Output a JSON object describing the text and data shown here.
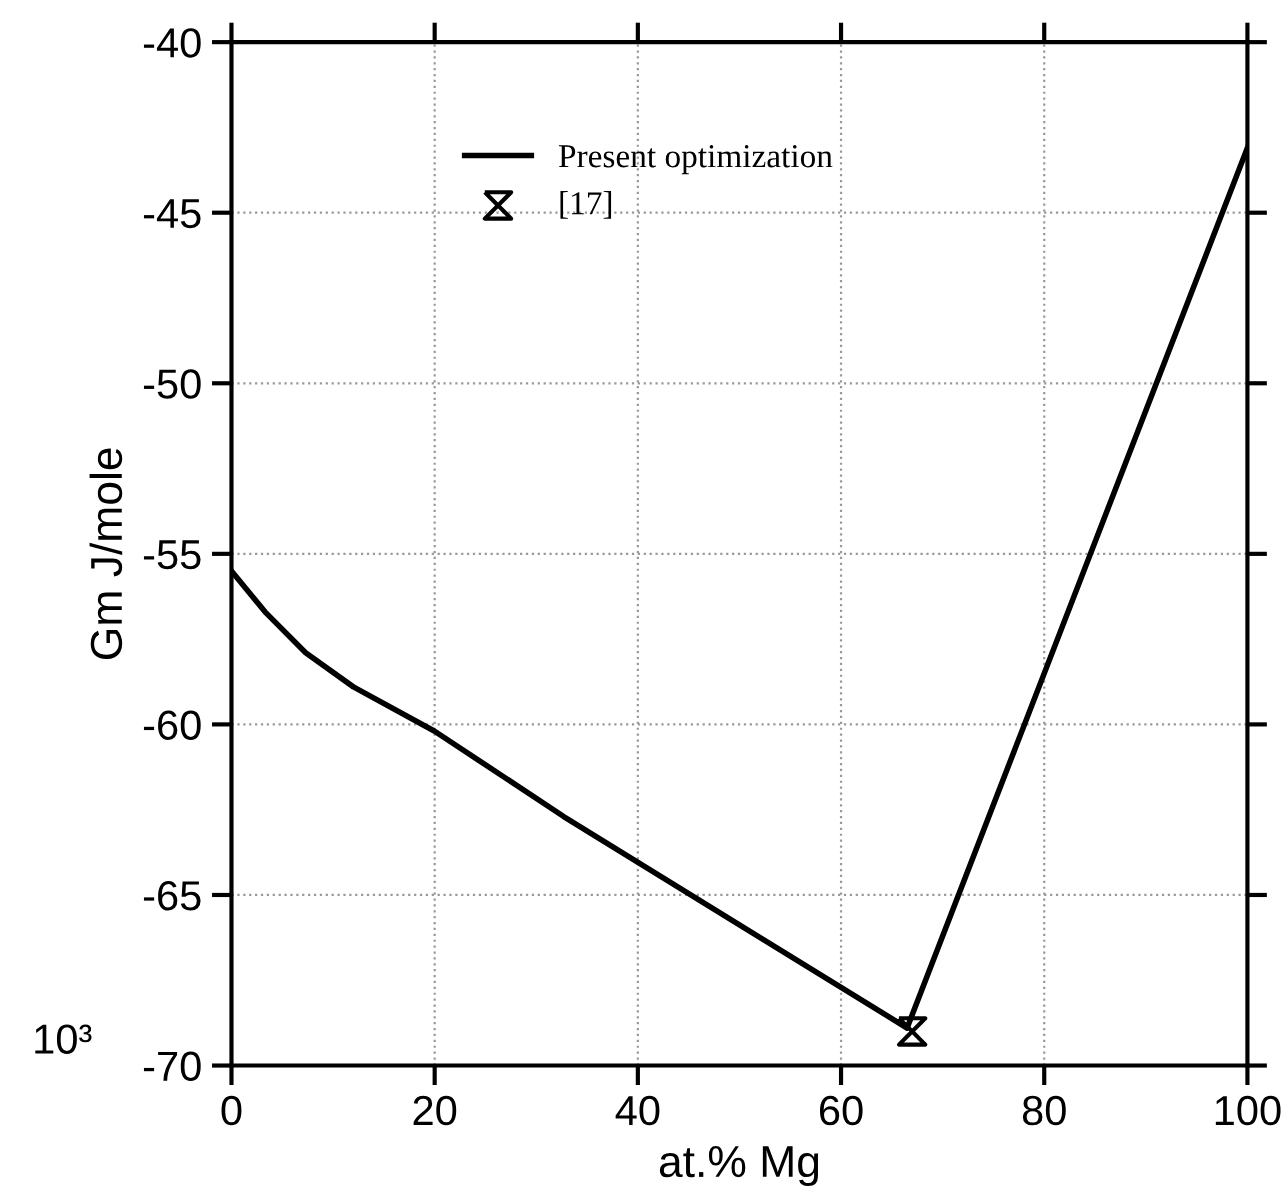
{
  "chart_data": {
    "type": "line",
    "xlabel": "at.% Mg",
    "ylabel": "Gm J/mole",
    "annotations": [
      "10³"
    ],
    "xlim": [
      0,
      100
    ],
    "xticks": [
      0,
      20,
      40,
      60,
      80,
      100
    ],
    "ylim": [
      -70,
      -40
    ],
    "yticks": [
      -70,
      -65,
      -60,
      -55,
      -50,
      -45,
      -40
    ],
    "grid": true,
    "legend": "top left",
    "series": [
      {
        "name": "Present optimization",
        "color": "#000000",
        "marker": "none",
        "x": [
          0,
          3.3,
          7.3,
          12,
          20,
          32.7,
          66.5,
          100
        ],
        "values": [
          -55.5,
          -56.7,
          -57.9,
          -58.9,
          -60.2,
          -62.7,
          -68.9,
          -43.1
        ]
      },
      {
        "name": "[17]",
        "type": "scatter",
        "color": "#000000",
        "x": [
          67
        ],
        "values": [
          -69.0
        ]
      }
    ]
  }
}
